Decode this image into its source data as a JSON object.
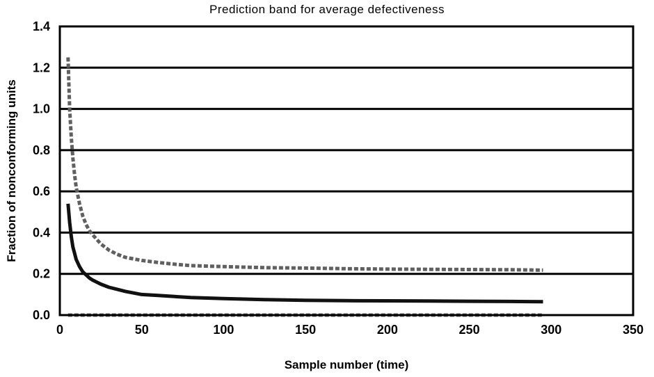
{
  "chart_data": {
    "type": "line",
    "title": "Prediction band for average defectiveness",
    "xlabel": "Sample number (time)",
    "ylabel": "Fraction of nonconforming units",
    "xlim": [
      0,
      350
    ],
    "ylim": [
      0,
      1.4
    ],
    "x_ticks": [
      0,
      50,
      100,
      150,
      200,
      250,
      300,
      350
    ],
    "y_ticks": [
      "0.0",
      "0.2",
      "0.4",
      "0.6",
      "0.8",
      "1.0",
      "1.2",
      "1.4"
    ],
    "grid": "horizontal",
    "legend": "none",
    "series": [
      {
        "style": "dotted",
        "color": "#606060",
        "x": [
          5,
          6,
          7,
          8,
          9,
          10,
          12,
          14,
          16,
          18,
          20,
          25,
          30,
          35,
          40,
          50,
          60,
          70,
          80,
          100,
          125,
          150,
          175,
          200,
          225,
          250,
          275,
          295
        ],
        "y": [
          1.25,
          1.0,
          0.86,
          0.76,
          0.68,
          0.62,
          0.54,
          0.48,
          0.44,
          0.41,
          0.39,
          0.345,
          0.315,
          0.295,
          0.28,
          0.265,
          0.255,
          0.247,
          0.24,
          0.235,
          0.23,
          0.228,
          0.225,
          0.223,
          0.222,
          0.221,
          0.22,
          0.218
        ]
      },
      {
        "style": "solid",
        "color": "#111111",
        "x": [
          5,
          6,
          7,
          8,
          9,
          10,
          12,
          14,
          16,
          18,
          20,
          25,
          30,
          35,
          40,
          50,
          60,
          70,
          80,
          100,
          125,
          150,
          175,
          200,
          225,
          250,
          275,
          295
        ],
        "y": [
          0.54,
          0.45,
          0.38,
          0.33,
          0.3,
          0.27,
          0.235,
          0.21,
          0.195,
          0.18,
          0.17,
          0.15,
          0.135,
          0.125,
          0.115,
          0.1,
          0.095,
          0.09,
          0.085,
          0.08,
          0.075,
          0.072,
          0.07,
          0.069,
          0.068,
          0.067,
          0.066,
          0.065
        ]
      },
      {
        "style": "dotted",
        "color": "#606060",
        "x": [
          5,
          295
        ],
        "y": [
          0.0,
          0.0
        ]
      }
    ]
  }
}
